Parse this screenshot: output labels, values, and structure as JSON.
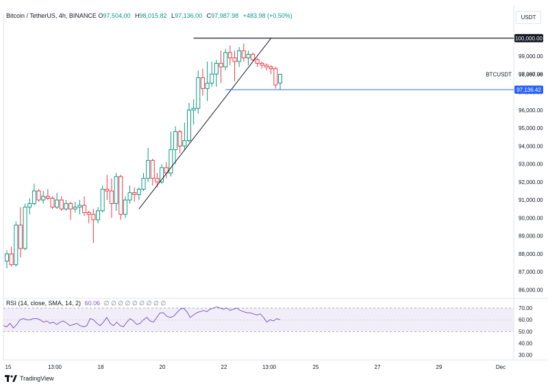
{
  "legend": {
    "symbol": "Bitcoin / TetherUS, 4h, BINANCE",
    "o_label": "O",
    "o_value": "97,504.00",
    "h_label": "H",
    "h_value": "98,015.82",
    "l_label": "L",
    "l_value": "97,136.00",
    "c_label": "C",
    "c_value": "97,987.98",
    "change": "+483.98 (+0.50%)"
  },
  "rsi_legend": {
    "label": "RSI (14, close, SMA, 14, 2)",
    "value": "60.06",
    "icons": "∅ ∅ ∅ ∅ ∅ ∅ ∅ ∅ ∅"
  },
  "unit": "USDT",
  "price_tags": {
    "level_100k": "100,000.00",
    "current_symbol": "BTCUSDT",
    "current_price": "97,987.98",
    "horizontal_line": "97,136.42"
  },
  "footer": {
    "brand": "TradingView",
    "logo_icon": "tradingview-logo-icon"
  },
  "colors": {
    "up": "#089981",
    "down": "#f23645",
    "hline": "#2962ff",
    "rsi": "#7e57c2",
    "band": "#ede7f6"
  },
  "chart_data": [
    {
      "type": "candlestick",
      "title": "Bitcoin / TetherUS, 4h, BINANCE",
      "y_ticks": [
        "86,000.00",
        "87,000.00",
        "88,000.00",
        "89,000.00",
        "90,000.00",
        "91,000.00",
        "92,000.00",
        "93,000.00",
        "94,000.00",
        "95,000.00",
        "96,000.00",
        "97,000.00",
        "98,000.00",
        "99,000.00",
        "100,000.00"
      ],
      "ylim": [
        85600,
        100600
      ],
      "x_ticks": [
        "15",
        "13:00",
        "18",
        "20",
        "22",
        "13:00",
        "25",
        "27",
        "29",
        "Dec"
      ],
      "candles": [
        [
          87600,
          88200,
          87200,
          88000
        ],
        [
          88000,
          88400,
          87300,
          87400
        ],
        [
          87400,
          89800,
          87300,
          89600
        ],
        [
          89600,
          90600,
          87800,
          88300
        ],
        [
          88300,
          90800,
          88200,
          90600
        ],
        [
          90600,
          91100,
          90200,
          90800
        ],
        [
          90800,
          91900,
          90700,
          91500
        ],
        [
          91500,
          91600,
          90900,
          91000
        ],
        [
          91000,
          91500,
          90800,
          91200
        ],
        [
          91200,
          91600,
          91000,
          91100
        ],
        [
          91100,
          91200,
          90500,
          90600
        ],
        [
          90600,
          91400,
          90500,
          91000
        ],
        [
          91000,
          91200,
          90400,
          90500
        ],
        [
          90500,
          91000,
          90400,
          90800
        ],
        [
          90800,
          90900,
          89900,
          90500
        ],
        [
          90500,
          90900,
          90300,
          90600
        ],
        [
          90600,
          91000,
          90200,
          90700
        ],
        [
          90700,
          91200,
          90100,
          90300
        ],
        [
          90300,
          90400,
          89700,
          90200
        ],
        [
          90200,
          90500,
          88600,
          89900
        ],
        [
          89900,
          90600,
          89700,
          90400
        ],
        [
          90400,
          91800,
          90300,
          91600
        ],
        [
          91600,
          92400,
          91000,
          91500
        ],
        [
          91500,
          92200,
          90000,
          90800
        ],
        [
          90800,
          92500,
          90400,
          92300
        ],
        [
          92300,
          92400,
          89900,
          90200
        ],
        [
          90200,
          91200,
          90000,
          91000
        ],
        [
          91000,
          91800,
          90800,
          91400
        ],
        [
          91400,
          91700,
          90900,
          91300
        ],
        [
          91300,
          91700,
          91000,
          91600
        ],
        [
          91600,
          92500,
          91500,
          92200
        ],
        [
          92200,
          93900,
          92000,
          93200
        ],
        [
          93200,
          93300,
          91800,
          92200
        ],
        [
          92200,
          92500,
          91700,
          92000
        ],
        [
          92000,
          93000,
          91900,
          92800
        ],
        [
          92800,
          93100,
          92200,
          92500
        ],
        [
          92500,
          94800,
          92300,
          93800
        ],
        [
          93800,
          95100,
          93000,
          94800
        ],
        [
          94800,
          94900,
          93600,
          94000
        ],
        [
          94000,
          95300,
          93800,
          94300
        ],
        [
          94300,
          96400,
          94200,
          96000
        ],
        [
          96000,
          96600,
          95200,
          96100
        ],
        [
          96100,
          98200,
          95800,
          97800
        ],
        [
          97800,
          98300,
          96800,
          97200
        ],
        [
          97200,
          98700,
          96500,
          97500
        ],
        [
          97500,
          98700,
          97300,
          98000
        ],
        [
          98000,
          98800,
          97300,
          98600
        ],
        [
          98600,
          99300,
          97500,
          98400
        ],
        [
          98400,
          99400,
          98200,
          99200
        ],
        [
          99200,
          99600,
          98500,
          98900
        ],
        [
          98900,
          99300,
          97600,
          98700
        ],
        [
          98700,
          99500,
          98400,
          99300
        ],
        [
          99300,
          99700,
          98700,
          98900
        ],
        [
          98900,
          99300,
          98500,
          99100
        ],
        [
          99100,
          99200,
          98700,
          98800
        ],
        [
          98800,
          98900,
          98400,
          98600
        ],
        [
          98600,
          98700,
          98300,
          98500
        ],
        [
          98500,
          98600,
          98200,
          98400
        ],
        [
          98400,
          98500,
          98000,
          98300
        ],
        [
          98300,
          98400,
          97200,
          97400
        ],
        [
          97504,
          98016,
          97136,
          97988
        ]
      ],
      "trendline": {
        "start": [
          91000,
          90500
        ],
        "end": [
          100000,
          100000
        ],
        "start_candle": 29,
        "end_candle": 58
      },
      "horizontal_line": 97136.42,
      "level_line": 100000,
      "current_price": 97987.98
    },
    {
      "type": "line",
      "title": "RSI (14, close, SMA, 14, 2)",
      "y_ticks": [
        "30.00",
        "40.00",
        "50.00",
        "60.00",
        "70.00"
      ],
      "ylim": [
        28,
        73
      ],
      "band": [
        50,
        70
      ],
      "values": [
        55,
        54,
        57,
        53,
        56,
        60,
        61,
        60,
        60,
        61,
        61,
        60,
        58,
        59,
        57,
        58,
        56,
        58,
        59,
        57,
        55,
        56,
        57,
        55,
        54,
        55,
        61,
        60,
        57,
        55,
        58,
        62,
        57,
        55,
        58,
        55,
        54,
        58,
        61,
        59,
        56,
        57,
        60,
        62,
        59,
        58,
        62,
        66,
        66,
        63,
        62,
        63,
        66,
        69,
        70,
        67,
        62,
        64,
        66,
        67,
        68,
        67,
        69,
        70,
        71,
        70,
        69,
        70,
        68,
        69,
        70,
        68,
        67,
        66,
        66,
        65,
        64,
        65,
        62,
        58,
        60,
        59,
        61,
        60
      ]
    }
  ]
}
